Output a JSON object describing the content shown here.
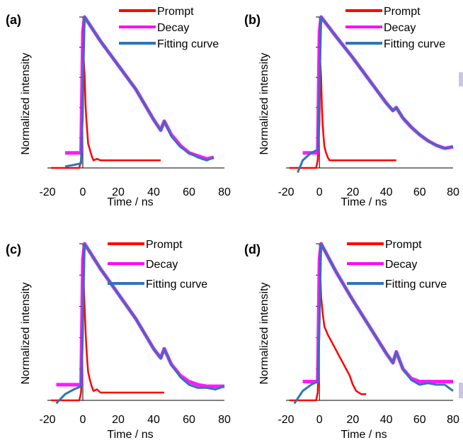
{
  "chart_data": [
    {
      "panel_label": "(a)",
      "type": "line",
      "xlabel": "Time / ns",
      "ylabel": "Normalized intensity",
      "xlim": [
        -20,
        80
      ],
      "ylim": [
        0,
        1
      ],
      "xticks": [
        -20,
        0,
        20,
        40,
        60,
        80
      ],
      "legend": "top-right",
      "series": [
        {
          "name": "Prompt",
          "color": "#ff0000",
          "x": [
            -18,
            -2,
            -1,
            0,
            0.5,
            1,
            1.5,
            2,
            2.5,
            3,
            4,
            5,
            6,
            8,
            10,
            12,
            14,
            18,
            22,
            28,
            32,
            42,
            44
          ],
          "y": [
            0,
            0,
            0.05,
            0.35,
            0.72,
            0.62,
            0.42,
            0.32,
            0.24,
            0.16,
            0.12,
            0.08,
            0.05,
            0.06,
            0.05,
            0.05,
            0.05,
            0.05,
            0.05,
            0.05,
            0.05,
            0.05,
            0.05
          ]
        },
        {
          "name": "Decay",
          "color": "#ff00ff",
          "x": [
            -10,
            -1,
            0,
            1,
            10,
            20,
            30,
            40,
            44,
            46,
            50,
            55,
            60,
            65,
            70,
            74
          ],
          "y": [
            0.1,
            0.1,
            0.9,
            1.0,
            0.84,
            0.68,
            0.52,
            0.32,
            0.25,
            0.31,
            0.22,
            0.15,
            0.1,
            0.08,
            0.06,
            0.07
          ]
        },
        {
          "name": "Fitting curve",
          "color": "#2e75b6",
          "x": [
            -10,
            -5,
            -1,
            0,
            1,
            10,
            20,
            30,
            40,
            44,
            46,
            50,
            55,
            60,
            65,
            70,
            74
          ],
          "y": [
            0.01,
            0.02,
            0.03,
            0.5,
            1.0,
            0.84,
            0.68,
            0.52,
            0.32,
            0.25,
            0.31,
            0.21,
            0.14,
            0.1,
            0.07,
            0.05,
            0.07
          ]
        }
      ]
    },
    {
      "panel_label": "(b)",
      "type": "line",
      "xlabel": "Time / ns",
      "ylabel": "Normalized intensity",
      "xlim": [
        -20,
        80
      ],
      "ylim": [
        0,
        1
      ],
      "xticks": [
        -20,
        0,
        20,
        40,
        60,
        80
      ],
      "legend": "top-right",
      "series": [
        {
          "name": "Prompt",
          "color": "#ff0000",
          "x": [
            -18,
            -2,
            -1,
            0,
            0.5,
            1,
            1.5,
            2,
            2.5,
            3,
            4,
            5,
            6,
            8,
            12,
            18,
            22,
            45,
            46
          ],
          "y": [
            0,
            0,
            0.05,
            0.3,
            0.7,
            0.6,
            0.4,
            0.28,
            0.2,
            0.14,
            0.1,
            0.07,
            0.05,
            0.05,
            0.05,
            0.05,
            0.05,
            0.05,
            0.05
          ]
        },
        {
          "name": "Decay",
          "color": "#ff00ff",
          "x": [
            -10,
            -1,
            0,
            1,
            10,
            20,
            30,
            40,
            44,
            46,
            50,
            55,
            60,
            65,
            70,
            75,
            80
          ],
          "y": [
            0.1,
            0.1,
            0.9,
            1.0,
            0.87,
            0.73,
            0.58,
            0.43,
            0.38,
            0.4,
            0.33,
            0.27,
            0.22,
            0.18,
            0.15,
            0.13,
            0.14
          ]
        },
        {
          "name": "Fitting curve",
          "color": "#2e75b6",
          "x": [
            -13,
            -10,
            -5,
            -1,
            0,
            1,
            10,
            20,
            30,
            40,
            44,
            46,
            50,
            55,
            60,
            65,
            70,
            75,
            80
          ],
          "y": [
            -0.03,
            0.05,
            0.1,
            0.12,
            0.5,
            1.0,
            0.87,
            0.73,
            0.58,
            0.43,
            0.38,
            0.4,
            0.33,
            0.27,
            0.22,
            0.18,
            0.15,
            0.13,
            0.14
          ]
        }
      ]
    },
    {
      "panel_label": "(c)",
      "type": "line",
      "xlabel": "Time / ns",
      "ylabel": "Normalized intensity",
      "xlim": [
        -20,
        80
      ],
      "ylim": [
        0,
        1
      ],
      "xticks": [
        -20,
        0,
        20,
        40,
        60,
        80
      ],
      "legend": "top-right",
      "series": [
        {
          "name": "Prompt",
          "color": "#ff0000",
          "x": [
            -18,
            -2,
            -1,
            0,
            0.5,
            1,
            1.5,
            2,
            2.5,
            3,
            4,
            5,
            6,
            8,
            10,
            12,
            16,
            45,
            46
          ],
          "y": [
            0,
            0,
            0.05,
            0.4,
            0.75,
            0.6,
            0.45,
            0.34,
            0.25,
            0.18,
            0.13,
            0.09,
            0.06,
            0.07,
            0.05,
            0.05,
            0.05,
            0.05,
            0.05
          ]
        },
        {
          "name": "Decay",
          "color": "#ff00ff",
          "x": [
            -15,
            -1,
            0,
            1,
            10,
            20,
            30,
            40,
            44,
            46,
            50,
            55,
            60,
            65,
            70,
            75,
            80
          ],
          "y": [
            0.1,
            0.1,
            0.9,
            1.0,
            0.84,
            0.68,
            0.52,
            0.33,
            0.27,
            0.33,
            0.23,
            0.16,
            0.12,
            0.1,
            0.09,
            0.09,
            0.09
          ]
        },
        {
          "name": "Fitting curve",
          "color": "#2e75b6",
          "x": [
            -15,
            -10,
            -5,
            -1,
            0,
            1,
            10,
            20,
            30,
            40,
            44,
            46,
            50,
            55,
            60,
            65,
            70,
            75,
            80
          ],
          "y": [
            -0.02,
            0.04,
            0.07,
            0.09,
            0.5,
            1.0,
            0.84,
            0.68,
            0.52,
            0.33,
            0.27,
            0.33,
            0.23,
            0.15,
            0.1,
            0.08,
            0.08,
            0.07,
            0.09
          ]
        }
      ]
    },
    {
      "panel_label": "(d)",
      "type": "line",
      "xlabel": "Time / ns",
      "ylabel": "Normalized intensity",
      "xlim": [
        -20,
        80
      ],
      "ylim": [
        0,
        1
      ],
      "xticks": [
        -20,
        0,
        20,
        40,
        60,
        80
      ],
      "legend": "top-right",
      "series": [
        {
          "name": "Prompt",
          "color": "#ff0000",
          "x": [
            -18,
            -2,
            -1,
            0,
            0.5,
            1,
            2,
            3,
            5,
            8,
            10,
            12,
            15,
            18,
            20,
            22,
            25,
            28
          ],
          "y": [
            0,
            0,
            0.05,
            0.45,
            0.82,
            0.66,
            0.55,
            0.47,
            0.42,
            0.36,
            0.32,
            0.28,
            0.22,
            0.16,
            0.1,
            0.06,
            0.04,
            0.04
          ]
        },
        {
          "name": "Decay",
          "color": "#ff00ff",
          "x": [
            -10,
            -1,
            0,
            1,
            10,
            20,
            30,
            40,
            44,
            46,
            50,
            55,
            60,
            65,
            70,
            75,
            80
          ],
          "y": [
            0.12,
            0.12,
            0.9,
            1.0,
            0.82,
            0.64,
            0.47,
            0.3,
            0.24,
            0.31,
            0.2,
            0.14,
            0.12,
            0.12,
            0.12,
            0.12,
            0.12
          ]
        },
        {
          "name": "Fitting curve",
          "color": "#2e75b6",
          "x": [
            -15,
            -10,
            -5,
            -1,
            0,
            1,
            10,
            20,
            30,
            40,
            44,
            46,
            50,
            55,
            60,
            65,
            70,
            75,
            80
          ],
          "y": [
            -0.02,
            0.06,
            0.1,
            0.12,
            0.5,
            1.0,
            0.82,
            0.64,
            0.47,
            0.3,
            0.24,
            0.31,
            0.2,
            0.13,
            0.1,
            0.11,
            0.1,
            0.1,
            0.06
          ]
        }
      ]
    }
  ]
}
